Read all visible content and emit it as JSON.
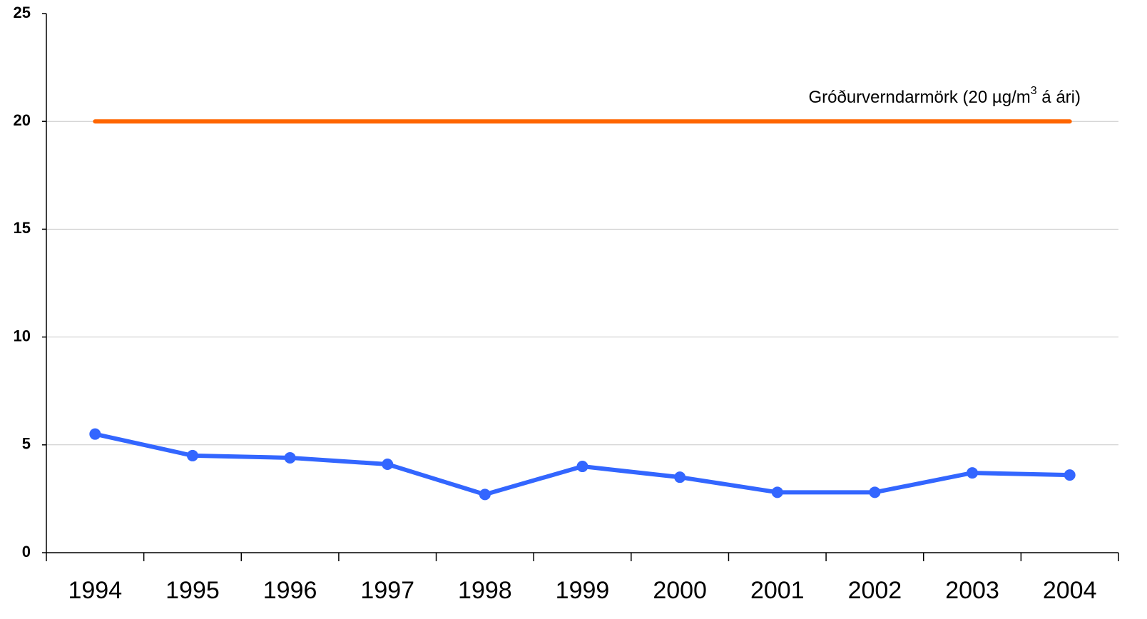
{
  "chart_data": {
    "type": "line",
    "categories": [
      "1994",
      "1995",
      "1996",
      "1997",
      "1998",
      "1999",
      "2000",
      "2001",
      "2002",
      "2003",
      "2004"
    ],
    "series": [
      {
        "color": "#ff6600",
        "marker": false,
        "values": [
          20,
          20,
          20,
          20,
          20,
          20,
          20,
          20,
          20,
          20,
          20
        ]
      },
      {
        "color": "#3366ff",
        "marker": true,
        "values": [
          5.5,
          4.5,
          4.4,
          4.1,
          2.7,
          4.0,
          3.5,
          2.8,
          2.8,
          3.7,
          3.6
        ]
      }
    ],
    "annotation": [
      "Gróðurverndarmörk (20 µg/m",
      "3",
      " á ári)"
    ],
    "ylim": [
      0,
      25
    ],
    "yticks": [
      0,
      5,
      10,
      15,
      20,
      25
    ],
    "grid": true
  }
}
